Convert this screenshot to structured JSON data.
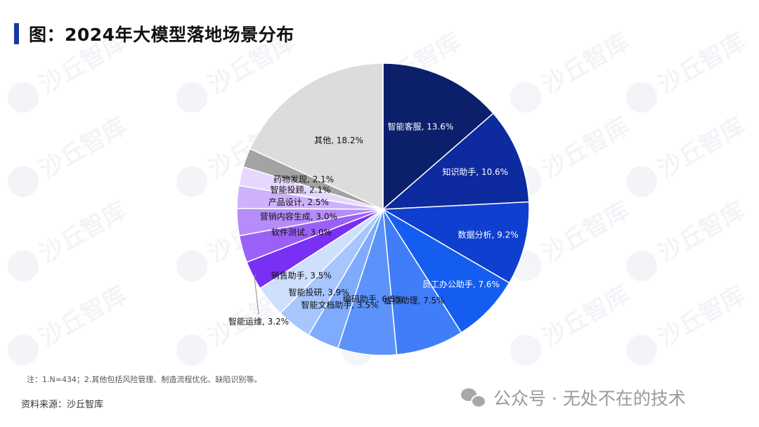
{
  "title": "图：2024年大模型落地场景分布",
  "footnote": "注：1.N=434；2.其他包括风险管理、制造流程优化、缺陷识别等。",
  "source": "资料来源：沙丘智库",
  "brand": {
    "icon": "wechat-icon",
    "text": "公众号 · 无处不在的技术"
  },
  "watermark_text": "沙丘智库",
  "chart_data": {
    "type": "pie",
    "title": "图：2024年大模型落地场景分布",
    "unit": "%",
    "slices": [
      {
        "name": "智能客服",
        "value": 13.6,
        "label": "智能客服, 13.6%",
        "color": "#0b1f6b",
        "text_color": "#ffffff"
      },
      {
        "name": "知识助手",
        "value": 10.6,
        "label": "知识助手, 10.6%",
        "color": "#0d2a9e",
        "text_color": "#ffffff"
      },
      {
        "name": "数据分析",
        "value": 9.2,
        "label": "数据分析, 9.2%",
        "color": "#0f3fcf",
        "text_color": "#ffffff"
      },
      {
        "name": "员工办公助手",
        "value": 7.6,
        "label": "员工办公助手, 7.6%",
        "color": "#145df0",
        "text_color": "#ffffff"
      },
      {
        "name": "虚拟助理",
        "value": 7.5,
        "label": "虚拟助理, 7.5%",
        "color": "#3f7ef8",
        "text_color": "#111111"
      },
      {
        "name": "编码助手",
        "value": 6.5,
        "label": "编码助手, 6.5%",
        "color": "#5b93fa",
        "text_color": "#111111"
      },
      {
        "name": "智能文档助手",
        "value": 3.5,
        "label": "智能文档助手, 3.5%",
        "color": "#7eabfb",
        "text_color": "#111111"
      },
      {
        "name": "智能投研",
        "value": 3.9,
        "label": "智能投研, 3.9%",
        "color": "#a6c6fd",
        "text_color": "#111111"
      },
      {
        "name": "销售助手",
        "value": 3.5,
        "label": "销售助手, 3.5%",
        "color": "#cfe0fe",
        "text_color": "#111111"
      },
      {
        "name": "智能运维",
        "value": 3.2,
        "label": "智能运维, 3.2%",
        "color": "#7a2ff5",
        "text_color": "#111111"
      },
      {
        "name": "软件测试",
        "value": 3.0,
        "label": "软件测试, 3.0%",
        "color": "#9b61f7",
        "text_color": "#111111"
      },
      {
        "name": "营销内容生成",
        "value": 3.0,
        "label": "营销内容生成, 3.0%",
        "color": "#b58cf9",
        "text_color": "#111111"
      },
      {
        "name": "产品设计",
        "value": 2.5,
        "label": "产品设计, 2.5%",
        "color": "#cdb2fb",
        "text_color": "#111111"
      },
      {
        "name": "智能投顾",
        "value": 2.1,
        "label": "智能投顾, 2.1%",
        "color": "#e5d7fd",
        "text_color": "#111111"
      },
      {
        "name": "药物发现",
        "value": 2.1,
        "label": "药物发现, 2.1%",
        "color": "#a3a3a3",
        "text_color": "#111111"
      },
      {
        "name": "其他",
        "value": 18.2,
        "label": "其他, 18.2%",
        "color": "#dcdcdc",
        "text_color": "#111111"
      }
    ],
    "start_angle": "12 o'clock",
    "direction": "clockwise",
    "legend": "none",
    "labels": "inside slices"
  }
}
